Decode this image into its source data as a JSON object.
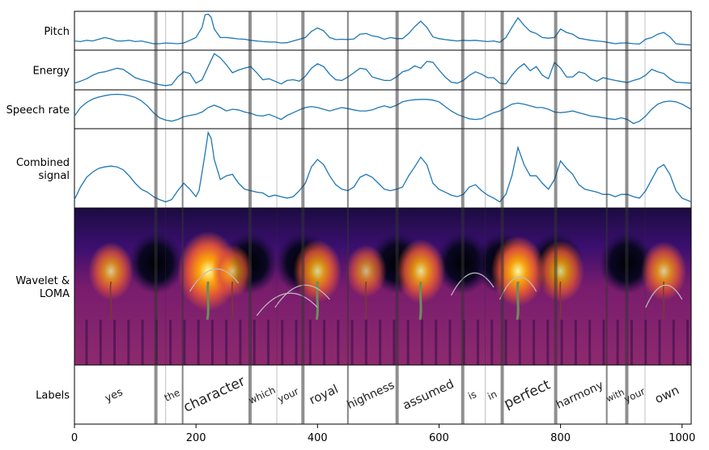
{
  "chart_data": {
    "type": "line",
    "panels": [
      {
        "key": "pitch",
        "label": [
          "Pitch"
        ]
      },
      {
        "key": "energy",
        "label": [
          "Energy"
        ]
      },
      {
        "key": "rate",
        "label": [
          "Speech rate"
        ]
      },
      {
        "key": "combined",
        "label": [
          "Combined",
          "signal"
        ]
      },
      {
        "key": "wavelet",
        "label": [
          "Wavelet &",
          "LOMA"
        ]
      },
      {
        "key": "labels",
        "label": [
          "Labels"
        ]
      }
    ],
    "xlim": [
      0,
      1015
    ],
    "xticks": [
      0,
      200,
      400,
      600,
      800,
      1000
    ],
    "line_color": "#1f77b4",
    "colormap": "inferno",
    "boundaries": [
      {
        "x": 134,
        "strength": "strong"
      },
      {
        "x": 150,
        "strength": "faint"
      },
      {
        "x": 178,
        "strength": "medium"
      },
      {
        "x": 289,
        "strength": "strong"
      },
      {
        "x": 333,
        "strength": "faint"
      },
      {
        "x": 376,
        "strength": "strong"
      },
      {
        "x": 450,
        "strength": "medium"
      },
      {
        "x": 531,
        "strength": "strong"
      },
      {
        "x": 639,
        "strength": "strong"
      },
      {
        "x": 676,
        "strength": "faint"
      },
      {
        "x": 704,
        "strength": "strong"
      },
      {
        "x": 792,
        "strength": "strong"
      },
      {
        "x": 876,
        "strength": "medium"
      },
      {
        "x": 909,
        "strength": "strong"
      },
      {
        "x": 939,
        "strength": "faint"
      }
    ],
    "words": [
      {
        "text": "yes",
        "x": 67,
        "size": 13
      },
      {
        "text": "the",
        "x": 163,
        "size": 12
      },
      {
        "text": "character",
        "x": 233,
        "size": 17
      },
      {
        "text": "which",
        "x": 311,
        "size": 12
      },
      {
        "text": "your",
        "x": 354,
        "size": 12
      },
      {
        "text": "royal",
        "x": 413,
        "size": 15
      },
      {
        "text": "highness",
        "x": 490,
        "size": 14
      },
      {
        "text": "assumed",
        "x": 585,
        "size": 15
      },
      {
        "text": "is",
        "x": 657,
        "size": 12
      },
      {
        "text": "in",
        "x": 690,
        "size": 12
      },
      {
        "text": "perfect",
        "x": 748,
        "size": 17
      },
      {
        "text": "harmony",
        "x": 834,
        "size": 14
      },
      {
        "text": "with",
        "x": 892,
        "size": 11
      },
      {
        "text": "your",
        "x": 924,
        "size": 12
      },
      {
        "text": "own",
        "x": 978,
        "size": 15
      }
    ],
    "series": [
      {
        "name": "pitch",
        "x": [
          0,
          10,
          20,
          30,
          40,
          50,
          60,
          70,
          80,
          90,
          100,
          110,
          120,
          130,
          140,
          150,
          160,
          170,
          180,
          190,
          200,
          205,
          210,
          215,
          220,
          225,
          230,
          240,
          250,
          260,
          270,
          280,
          290,
          300,
          310,
          320,
          330,
          340,
          350,
          360,
          370,
          380,
          390,
          400,
          410,
          420,
          430,
          440,
          450,
          460,
          470,
          480,
          490,
          500,
          510,
          520,
          530,
          540,
          550,
          560,
          570,
          580,
          590,
          600,
          610,
          620,
          630,
          640,
          650,
          660,
          670,
          680,
          690,
          700,
          710,
          720,
          730,
          740,
          750,
          760,
          770,
          780,
          790,
          800,
          810,
          820,
          830,
          840,
          850,
          860,
          870,
          880,
          890,
          900,
          910,
          920,
          930,
          940,
          950,
          960,
          970,
          980,
          990,
          1000,
          1015
        ],
        "values": [
          0.2,
          0.18,
          0.22,
          0.2,
          0.25,
          0.3,
          0.26,
          0.2,
          0.2,
          0.22,
          0.18,
          0.2,
          0.16,
          0.12,
          0.12,
          0.14,
          0.13,
          0.12,
          0.14,
          0.22,
          0.3,
          0.45,
          0.6,
          0.97,
          0.99,
          0.9,
          0.55,
          0.3,
          0.3,
          0.28,
          0.26,
          0.25,
          0.22,
          0.2,
          0.18,
          0.17,
          0.17,
          0.14,
          0.15,
          0.2,
          0.25,
          0.3,
          0.48,
          0.58,
          0.5,
          0.3,
          0.24,
          0.25,
          0.24,
          0.26,
          0.4,
          0.42,
          0.35,
          0.32,
          0.25,
          0.3,
          0.27,
          0.27,
          0.42,
          0.62,
          0.78,
          0.6,
          0.32,
          0.27,
          0.24,
          0.22,
          0.2,
          0.22,
          0.21,
          0.22,
          0.2,
          0.18,
          0.2,
          0.16,
          0.3,
          0.6,
          0.88,
          0.66,
          0.48,
          0.42,
          0.3,
          0.28,
          0.3,
          0.55,
          0.45,
          0.4,
          0.28,
          0.25,
          0.22,
          0.2,
          0.18,
          0.15,
          0.12,
          0.14,
          0.14,
          0.12,
          0.11,
          0.25,
          0.3,
          0.4,
          0.45,
          0.32,
          0.12,
          0.1,
          0.08
        ]
      },
      {
        "name": "energy",
        "x": [
          0,
          10,
          20,
          30,
          40,
          50,
          60,
          70,
          80,
          90,
          100,
          110,
          120,
          130,
          140,
          150,
          160,
          170,
          180,
          190,
          200,
          210,
          220,
          230,
          240,
          250,
          260,
          270,
          280,
          290,
          300,
          310,
          320,
          330,
          340,
          350,
          360,
          370,
          380,
          390,
          400,
          410,
          420,
          430,
          440,
          450,
          460,
          470,
          480,
          490,
          500,
          510,
          520,
          530,
          540,
          550,
          560,
          570,
          580,
          590,
          600,
          610,
          620,
          630,
          640,
          650,
          660,
          670,
          680,
          690,
          700,
          710,
          720,
          730,
          740,
          750,
          760,
          770,
          780,
          790,
          800,
          810,
          820,
          830,
          840,
          850,
          860,
          870,
          880,
          890,
          900,
          910,
          920,
          930,
          940,
          950,
          960,
          970,
          980,
          990,
          1000,
          1015
        ],
        "values": [
          0.12,
          0.18,
          0.25,
          0.35,
          0.42,
          0.45,
          0.5,
          0.55,
          0.52,
          0.4,
          0.28,
          0.22,
          0.18,
          0.12,
          0.08,
          0.05,
          0.08,
          0.3,
          0.45,
          0.4,
          0.12,
          0.22,
          0.6,
          0.97,
          0.85,
          0.65,
          0.42,
          0.5,
          0.55,
          0.6,
          0.42,
          0.22,
          0.25,
          0.18,
          0.1,
          0.2,
          0.22,
          0.18,
          0.32,
          0.55,
          0.68,
          0.6,
          0.38,
          0.22,
          0.2,
          0.3,
          0.42,
          0.55,
          0.52,
          0.3,
          0.25,
          0.2,
          0.2,
          0.3,
          0.45,
          0.5,
          0.62,
          0.55,
          0.75,
          0.72,
          0.5,
          0.3,
          0.15,
          0.12,
          0.2,
          0.35,
          0.45,
          0.38,
          0.28,
          0.28,
          0.12,
          0.1,
          0.35,
          0.55,
          0.68,
          0.48,
          0.6,
          0.35,
          0.25,
          0.72,
          0.55,
          0.3,
          0.3,
          0.45,
          0.4,
          0.25,
          0.18,
          0.28,
          0.24,
          0.2,
          0.17,
          0.14,
          0.2,
          0.25,
          0.35,
          0.52,
          0.45,
          0.4,
          0.25,
          0.15,
          0.14,
          0.12
        ]
      },
      {
        "name": "rate",
        "x": [
          0,
          10,
          20,
          30,
          40,
          50,
          60,
          70,
          80,
          90,
          100,
          110,
          120,
          130,
          140,
          150,
          160,
          170,
          180,
          190,
          200,
          210,
          220,
          230,
          240,
          250,
          260,
          270,
          280,
          290,
          300,
          310,
          320,
          330,
          340,
          350,
          360,
          370,
          380,
          390,
          400,
          410,
          420,
          430,
          440,
          450,
          460,
          470,
          480,
          490,
          500,
          510,
          520,
          530,
          540,
          550,
          560,
          570,
          580,
          590,
          600,
          610,
          620,
          630,
          640,
          650,
          660,
          670,
          680,
          690,
          700,
          710,
          720,
          730,
          740,
          750,
          760,
          770,
          780,
          790,
          800,
          810,
          820,
          830,
          840,
          850,
          860,
          870,
          880,
          890,
          900,
          910,
          920,
          930,
          940,
          950,
          960,
          970,
          980,
          990,
          1000,
          1015
        ],
        "values": [
          0.3,
          0.55,
          0.7,
          0.8,
          0.86,
          0.9,
          0.93,
          0.94,
          0.93,
          0.9,
          0.85,
          0.75,
          0.6,
          0.4,
          0.25,
          0.18,
          0.15,
          0.2,
          0.28,
          0.32,
          0.35,
          0.42,
          0.55,
          0.62,
          0.55,
          0.45,
          0.5,
          0.48,
          0.42,
          0.38,
          0.32,
          0.3,
          0.35,
          0.28,
          0.2,
          0.32,
          0.4,
          0.48,
          0.55,
          0.58,
          0.55,
          0.5,
          0.45,
          0.5,
          0.55,
          0.52,
          0.48,
          0.45,
          0.45,
          0.48,
          0.55,
          0.6,
          0.55,
          0.62,
          0.72,
          0.76,
          0.78,
          0.79,
          0.79,
          0.77,
          0.72,
          0.58,
          0.45,
          0.35,
          0.28,
          0.22,
          0.2,
          0.22,
          0.32,
          0.4,
          0.45,
          0.55,
          0.65,
          0.68,
          0.65,
          0.6,
          0.55,
          0.55,
          0.5,
          0.42,
          0.4,
          0.42,
          0.45,
          0.4,
          0.35,
          0.3,
          0.28,
          0.25,
          0.22,
          0.2,
          0.25,
          0.2,
          0.08,
          0.15,
          0.3,
          0.5,
          0.65,
          0.72,
          0.74,
          0.72,
          0.65,
          0.5
        ]
      },
      {
        "name": "combined",
        "x": [
          0,
          10,
          20,
          30,
          40,
          50,
          60,
          70,
          80,
          90,
          100,
          110,
          120,
          130,
          140,
          150,
          160,
          170,
          180,
          190,
          200,
          205,
          210,
          215,
          220,
          225,
          230,
          240,
          250,
          260,
          270,
          280,
          290,
          300,
          310,
          320,
          330,
          340,
          350,
          360,
          370,
          380,
          390,
          400,
          410,
          420,
          430,
          440,
          450,
          460,
          470,
          480,
          490,
          500,
          510,
          520,
          530,
          540,
          550,
          560,
          570,
          580,
          590,
          600,
          610,
          620,
          630,
          640,
          650,
          660,
          670,
          680,
          690,
          700,
          710,
          720,
          730,
          740,
          750,
          760,
          770,
          780,
          790,
          800,
          810,
          820,
          830,
          840,
          850,
          860,
          870,
          880,
          890,
          900,
          910,
          920,
          930,
          940,
          950,
          960,
          970,
          980,
          990,
          1000,
          1015
        ],
        "values": [
          0.08,
          0.25,
          0.38,
          0.45,
          0.5,
          0.52,
          0.53,
          0.52,
          0.48,
          0.4,
          0.3,
          0.22,
          0.18,
          0.12,
          0.08,
          0.05,
          0.08,
          0.2,
          0.3,
          0.22,
          0.12,
          0.2,
          0.45,
          0.7,
          0.98,
          0.9,
          0.62,
          0.35,
          0.4,
          0.42,
          0.3,
          0.22,
          0.2,
          0.18,
          0.17,
          0.12,
          0.14,
          0.12,
          0.1,
          0.12,
          0.2,
          0.3,
          0.52,
          0.62,
          0.55,
          0.4,
          0.28,
          0.22,
          0.2,
          0.25,
          0.38,
          0.42,
          0.38,
          0.3,
          0.22,
          0.2,
          0.22,
          0.25,
          0.4,
          0.52,
          0.65,
          0.55,
          0.3,
          0.22,
          0.18,
          0.14,
          0.12,
          0.15,
          0.25,
          0.28,
          0.2,
          0.14,
          0.1,
          0.05,
          0.15,
          0.4,
          0.78,
          0.55,
          0.4,
          0.4,
          0.3,
          0.22,
          0.35,
          0.6,
          0.5,
          0.42,
          0.28,
          0.22,
          0.2,
          0.18,
          0.15,
          0.15,
          0.12,
          0.15,
          0.15,
          0.12,
          0.1,
          0.2,
          0.35,
          0.5,
          0.55,
          0.42,
          0.2,
          0.1,
          0.05
        ]
      }
    ]
  }
}
